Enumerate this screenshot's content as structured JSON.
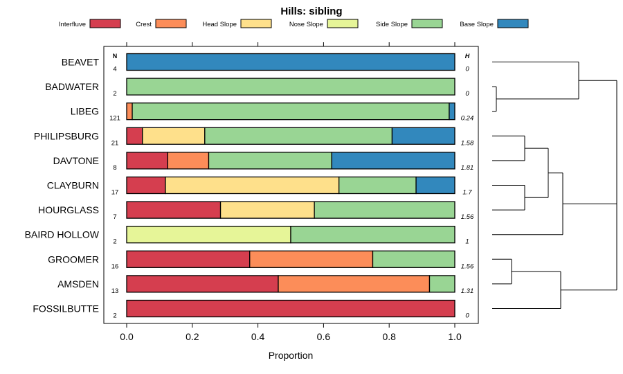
{
  "chart_data": {
    "type": "bar",
    "orientation": "horizontal",
    "stacked": true,
    "title": "Hills: sibling",
    "xlabel": "Proportion",
    "xlim": [
      0,
      1
    ],
    "xticks": [
      "0.0",
      "0.2",
      "0.4",
      "0.6",
      "0.8",
      "1.0"
    ],
    "n_header": "N",
    "h_header": "H",
    "legend": [
      {
        "name": "Interfluve",
        "color": "#d53e4f"
      },
      {
        "name": "Crest",
        "color": "#fc8d59"
      },
      {
        "name": "Head Slope",
        "color": "#fee08b"
      },
      {
        "name": "Nose Slope",
        "color": "#e6f598"
      },
      {
        "name": "Side Slope",
        "color": "#99d594"
      },
      {
        "name": "Base Slope",
        "color": "#3288bd"
      }
    ],
    "categories": [
      "BEAVET",
      "BADWATER",
      "LIBEG",
      "PHILIPSBURG",
      "DAVTONE",
      "CLAYBURN",
      "HOURGLASS",
      "BAIRD HOLLOW",
      "GROOMER",
      "AMSDEN",
      "FOSSILBUTTE"
    ],
    "n": [
      "4",
      "2",
      "121",
      "21",
      "8",
      "17",
      "7",
      "2",
      "16",
      "13",
      "2"
    ],
    "h": [
      "0",
      "0",
      "0.24",
      "1.58",
      "1.81",
      "1.7",
      "1.56",
      "1",
      "1.56",
      "1.31",
      "0"
    ],
    "series": [
      {
        "name": "Interfluve",
        "values": [
          0,
          0,
          0,
          0.048,
          0.125,
          0.118,
          0.286,
          0,
          0.375,
          0.462,
          1
        ]
      },
      {
        "name": "Crest",
        "values": [
          0,
          0,
          0.017,
          0,
          0.125,
          0,
          0,
          0,
          0.375,
          0.461,
          0
        ]
      },
      {
        "name": "Head Slope",
        "values": [
          0,
          0,
          0,
          0.19,
          0,
          0.529,
          0.286,
          0,
          0,
          0,
          0
        ]
      },
      {
        "name": "Nose Slope",
        "values": [
          0,
          0,
          0,
          0,
          0,
          0,
          0,
          0.5,
          0,
          0,
          0
        ]
      },
      {
        "name": "Side Slope",
        "values": [
          0,
          1,
          0.966,
          0.571,
          0.375,
          0.235,
          0.428,
          0.5,
          0.25,
          0.077,
          0
        ]
      },
      {
        "name": "Base Slope",
        "values": [
          1,
          0,
          0.017,
          0.191,
          0.375,
          0.118,
          0,
          0,
          0,
          0,
          0
        ]
      }
    ],
    "dendrogram": {
      "description": "hierarchical clustering of profiles",
      "groups": [
        [
          "BEAVET",
          [
            "BADWATER",
            "LIBEG"
          ]
        ],
        [
          [
            [
              "PHILIPSBURG",
              "DAVTONE"
            ],
            [
              "CLAYBURN",
              "HOURGLASS"
            ]
          ],
          "BAIRD HOLLOW"
        ],
        [
          [
            "GROOMER",
            "AMSDEN"
          ],
          "FOSSILBUTTE"
        ]
      ]
    }
  }
}
